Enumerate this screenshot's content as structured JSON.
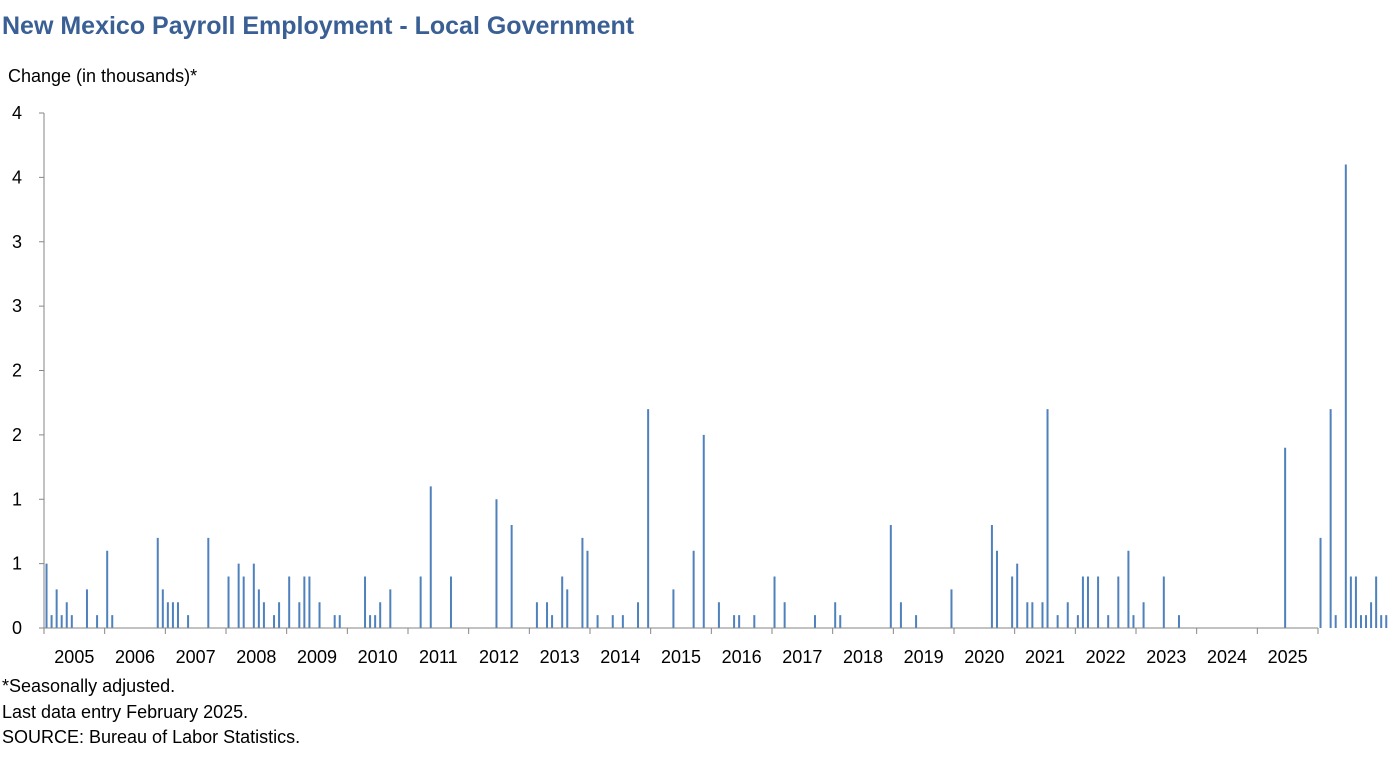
{
  "title": "New Mexico Payroll Employment  - Local Government",
  "footnotes": [
    "*Seasonally adjusted.",
    "Last data entry February 2025.",
    "SOURCE: Bureau of Labor Statistics."
  ],
  "colors": {
    "title": "#3a5f94",
    "bar": "#4f81bd",
    "axis": "#868686"
  },
  "chart_data": {
    "type": "bar",
    "title": "New Mexico Payroll Employment  - Local Government",
    "ylabel": "Change (in thousands)*",
    "xlabel": "",
    "ylim": [
      0,
      4
    ],
    "yticks": [
      0,
      0.5,
      1,
      1.5,
      2,
      2.5,
      3,
      3.5,
      4
    ],
    "ytick_labels": [
      "0",
      "1",
      "1",
      "2",
      "2",
      "3",
      "3",
      "4",
      "4"
    ],
    "xtick_labels": [
      "2005",
      "2006",
      "2007",
      "2008",
      "2009",
      "2010",
      "2011",
      "2012",
      "2013",
      "2014",
      "2015",
      "2016",
      "2017",
      "2018",
      "2019",
      "2020",
      "2021",
      "2022",
      "2023",
      "2024",
      "2025"
    ],
    "grid": false,
    "legend": "none",
    "x_start": "2005-01",
    "x_end": "2025-02",
    "values": [
      0.5,
      0.1,
      0.3,
      0.1,
      0.2,
      0.1,
      0,
      0,
      0.3,
      0,
      0.1,
      0,
      0.6,
      0.1,
      0,
      0,
      0,
      0,
      0,
      0,
      0,
      0,
      0.7,
      0.3,
      0.2,
      0.2,
      0.2,
      0,
      0.1,
      0,
      0,
      0,
      0.7,
      0,
      0,
      0,
      0.4,
      0,
      0.5,
      0.4,
      0,
      0.5,
      0.3,
      0.2,
      0,
      0.1,
      0.2,
      0,
      0.4,
      0,
      0.2,
      0.4,
      0.4,
      0,
      0.2,
      0,
      0,
      0.1,
      0.1,
      0,
      0,
      0,
      0,
      0.4,
      0.1,
      0.1,
      0.2,
      0,
      0.3,
      0,
      0,
      0,
      0,
      0,
      0.4,
      0,
      1.1,
      0,
      0,
      0,
      0.4,
      0,
      0,
      0,
      0,
      0,
      0,
      0,
      0,
      1.0,
      0,
      0,
      0.8,
      0,
      0,
      0,
      0,
      0.2,
      0,
      0.2,
      0.1,
      0,
      0.4,
      0.3,
      0,
      0,
      0.7,
      0.6,
      0,
      0.1,
      0,
      0,
      0.1,
      0,
      0.1,
      0,
      0,
      0.2,
      0,
      1.7,
      0,
      0,
      0,
      0,
      0.3,
      0,
      0,
      0,
      0.6,
      0,
      1.5,
      0,
      0,
      0.2,
      0,
      0,
      0.1,
      0.1,
      0,
      0,
      0.1,
      0,
      0,
      0,
      0.4,
      0,
      0.2,
      0,
      0,
      0,
      0,
      0,
      0.1,
      0,
      0,
      0,
      0.2,
      0.1,
      0,
      0,
      0,
      0,
      0,
      0,
      0,
      0,
      0,
      0.8,
      0,
      0.2,
      0,
      0,
      0.1,
      0,
      0,
      0,
      0,
      0,
      0,
      0.3,
      0,
      0,
      0,
      0,
      0,
      0,
      0,
      0.8,
      0.6,
      0,
      0,
      0.4,
      0.5,
      0,
      0.2,
      0.2,
      0,
      0.2,
      1.7,
      0,
      0.1,
      0,
      0.2,
      0,
      0.1,
      0.4,
      0.4,
      0,
      0.4,
      0,
      0.1,
      0,
      0.4,
      0,
      0.6,
      0.1,
      0,
      0.2,
      0,
      0,
      0,
      0.4,
      0,
      0,
      0.1,
      0,
      0,
      0,
      0,
      0,
      0,
      0,
      0,
      0,
      0,
      0,
      0,
      0,
      0,
      0,
      0,
      0,
      0,
      0,
      0,
      1.4,
      0,
      0,
      0,
      0,
      0,
      0,
      0.7,
      0,
      1.7,
      0.1,
      0,
      3.6,
      0.4,
      0.4,
      0.1,
      0.1,
      0.2,
      0.4,
      0.1,
      0.1,
      0.1,
      0,
      0,
      0,
      0,
      0,
      0,
      0,
      0,
      0,
      1.7,
      2.8,
      0,
      0.7,
      0.5,
      0.2,
      0.5,
      0.3,
      0.2,
      0,
      0.6,
      0,
      0,
      0.2,
      0.3,
      0.1,
      0.8,
      0.5,
      0.4,
      0.4,
      0.4,
      0,
      0.4,
      0,
      0.4,
      0,
      0,
      1.0,
      0.9,
      0,
      0,
      0.6,
      0,
      0.3,
      0.1,
      0,
      0,
      0,
      0,
      0,
      0,
      0,
      0,
      0,
      0,
      0,
      0,
      0
    ]
  }
}
